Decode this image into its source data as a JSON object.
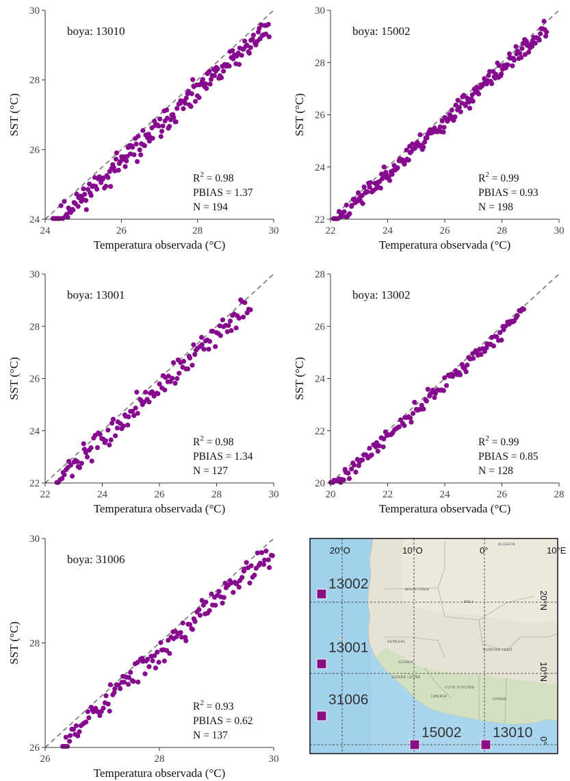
{
  "chart_data": [
    {
      "type": "scatter",
      "station_label": "boya: 13010",
      "xlabel": "Temperatura observada (°C)",
      "ylabel": "SST (°C)",
      "xlim": [
        24,
        30
      ],
      "ylim": [
        24,
        30
      ],
      "xticks": [
        "24",
        "26",
        "28",
        "30"
      ],
      "yticks": [
        "24",
        "26",
        "28",
        "30"
      ],
      "stats": {
        "r2_label": "R",
        "r2_sup": "2",
        "r2_value": " = 0.98",
        "pbias": "PBIAS = 1.37",
        "n": "N = 194"
      },
      "line": "y = x (dashed)",
      "x_range": [
        24.2,
        29.9
      ],
      "bias": -0.35,
      "spread": 0.17,
      "n_points": 194,
      "seed": 11
    },
    {
      "type": "scatter",
      "station_label": "boya: 15002",
      "xlabel": "Temperatura observada (°C)",
      "ylabel": "SST (°C)",
      "xlim": [
        22,
        30
      ],
      "ylim": [
        22,
        30
      ],
      "xticks": [
        "22",
        "24",
        "26",
        "28",
        "30"
      ],
      "yticks": [
        "22",
        "24",
        "26",
        "28",
        "30"
      ],
      "stats": {
        "r2_label": "R",
        "r2_sup": "2",
        "r2_value": " = 0.99",
        "pbias": "PBIAS = 0.93",
        "n": "N = 198"
      },
      "line": "y = x (dashed)",
      "x_range": [
        22.1,
        29.6
      ],
      "bias": -0.24,
      "spread": 0.17,
      "n_points": 198,
      "seed": 23
    },
    {
      "type": "scatter",
      "station_label": "boya: 13001",
      "xlabel": "Temperatura observada (°C)",
      "ylabel": "SST (°C)",
      "xlim": [
        22,
        30
      ],
      "ylim": [
        22,
        30
      ],
      "xticks": [
        "22",
        "24",
        "26",
        "28",
        "30"
      ],
      "yticks": [
        "22",
        "24",
        "26",
        "28",
        "30"
      ],
      "stats": {
        "r2_label": "R",
        "r2_sup": "2",
        "r2_value": " = 0.98",
        "pbias": "PBIAS = 1.34",
        "n": "N = 127"
      },
      "line": "y = x (dashed)",
      "x_range": [
        22.4,
        29.2
      ],
      "bias": -0.34,
      "spread": 0.22,
      "n_points": 127,
      "seed": 37
    },
    {
      "type": "scatter",
      "station_label": "boya: 13002",
      "xlabel": "Temperatura observada (°C)",
      "ylabel": "SST (°C)",
      "xlim": [
        20,
        28
      ],
      "ylim": [
        20,
        28
      ],
      "xticks": [
        "20",
        "22",
        "24",
        "26",
        "28"
      ],
      "yticks": [
        "20",
        "22",
        "24",
        "26",
        "28"
      ],
      "stats": {
        "r2_label": "R",
        "r2_sup": "2",
        "r2_value": " = 0.99",
        "pbias": "PBIAS = 0.85",
        "n": "N = 128"
      },
      "line": "y = x (dashed)",
      "x_range": [
        20.0,
        26.8
      ],
      "bias": -0.2,
      "spread": 0.14,
      "n_points": 128,
      "seed": 41
    },
    {
      "type": "scatter",
      "station_label": "boya: 31006",
      "xlabel": "Temperatura observada (°C)",
      "ylabel": "SST (°C)",
      "xlim": [
        26,
        30
      ],
      "ylim": [
        26,
        30
      ],
      "xticks": [
        "26",
        "28",
        "30"
      ],
      "yticks": [
        "26",
        "28",
        "30"
      ],
      "stats": {
        "r2_label": "R",
        "r2_sup": "2",
        "r2_value": " = 0.93",
        "pbias": "PBIAS = 0.62",
        "n": "N = 137"
      },
      "line": "y = x (dashed)",
      "x_range": [
        26.3,
        30.0
      ],
      "bias": -0.17,
      "spread": 0.13,
      "n_points": 137,
      "seed": 53
    }
  ],
  "map": {
    "lon_labels": [
      "20°O",
      "10°O",
      "0°",
      "10°E"
    ],
    "lat_labels": [
      "20°N",
      "10°N",
      "0°"
    ],
    "stations": [
      {
        "name": "13002",
        "lon": -20,
        "lat": 21
      },
      {
        "name": "13001",
        "lon": -20,
        "lat": 12
      },
      {
        "name": "31006",
        "lon": -20,
        "lat": 4
      },
      {
        "name": "15002",
        "lon": -10,
        "lat": 0
      },
      {
        "name": "13010",
        "lon": 0,
        "lat": 0
      }
    ],
    "region_labels": [
      "ALGERIA",
      "MAURITANIA",
      "MALI",
      "SENEGAL",
      "GUINEA",
      "SIERRA LEONE",
      "LIBERIA",
      "COTE D'IVOIRE",
      "GHANA",
      "BURKINA FASO"
    ],
    "colors": {
      "ocean": "#a9d6ee",
      "land": "#e6e3d6",
      "marker": "#8a0f85"
    }
  },
  "colors": {
    "points": "#850a8e",
    "line": "#808080"
  }
}
